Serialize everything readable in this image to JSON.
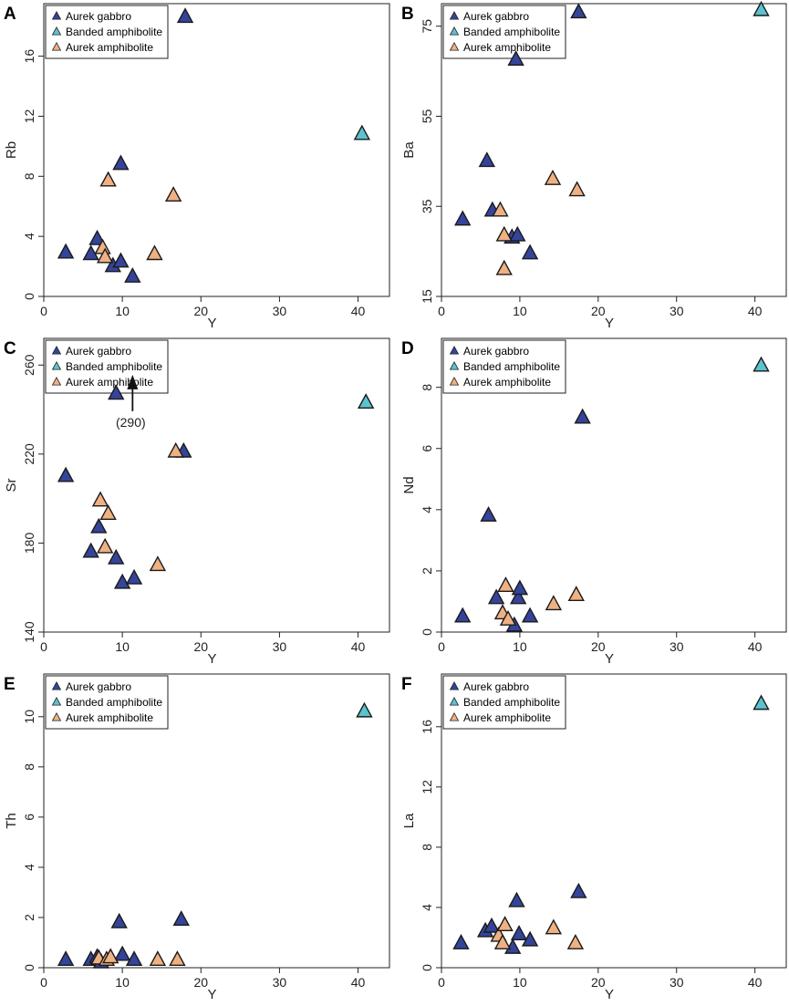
{
  "figure": {
    "colors": {
      "Aurek gabbro": "#34449a",
      "Banded amphibolite": "#5bc3cd",
      "Aurek amphibolite": "#f0b182"
    }
  },
  "chart_data": [
    {
      "type": "scatter",
      "panel": "A",
      "xlabel": "Y",
      "ylabel": "Rb",
      "xlim": [
        0,
        44
      ],
      "ylim": [
        0,
        19.5
      ],
      "xticks": [
        0,
        10,
        20,
        30,
        40
      ],
      "yticks": [
        0,
        4,
        8,
        12,
        16
      ],
      "legend": [
        "Aurek gabbro",
        "Banded amphibolite",
        "Aurek amphibolite"
      ],
      "series": [
        {
          "name": "Aurek gabbro",
          "points": [
            [
              2.8,
              2.9
            ],
            [
              6,
              2.8
            ],
            [
              6.8,
              3.8
            ],
            [
              8.8,
              2
            ],
            [
              9.8,
              2.3
            ],
            [
              9.8,
              8.8
            ],
            [
              11.3,
              1.3
            ],
            [
              18,
              18.6
            ]
          ]
        },
        {
          "name": "Banded amphibolite",
          "points": [
            [
              40.5,
              10.8
            ]
          ]
        },
        {
          "name": "Aurek amphibolite",
          "points": [
            [
              7.5,
              3.2
            ],
            [
              7.8,
              2.6
            ],
            [
              8.2,
              7.7
            ],
            [
              14.1,
              2.8
            ],
            [
              16.5,
              6.7
            ]
          ]
        }
      ]
    },
    {
      "type": "scatter",
      "panel": "B",
      "xlabel": "Y",
      "ylabel": "Ba",
      "xlim": [
        0,
        44
      ],
      "ylim": [
        15,
        80
      ],
      "xticks": [
        0,
        10,
        20,
        30,
        40
      ],
      "yticks": [
        15,
        35,
        55,
        75
      ],
      "legend": [
        "Aurek gabbro",
        "Banded amphibolite",
        "Aurek amphibolite"
      ],
      "series": [
        {
          "name": "Aurek gabbro",
          "points": [
            [
              2.7,
              32
            ],
            [
              5.8,
              45
            ],
            [
              6.5,
              34
            ],
            [
              9,
              28
            ],
            [
              9.7,
              28.5
            ],
            [
              9.5,
              67.5
            ],
            [
              11.3,
              24.5
            ],
            [
              17.5,
              78
            ]
          ]
        },
        {
          "name": "Banded amphibolite",
          "points": [
            [
              40.8,
              78.5
            ]
          ]
        },
        {
          "name": "Aurek amphibolite",
          "points": [
            [
              7.5,
              34
            ],
            [
              8,
              28.5
            ],
            [
              8,
              21
            ],
            [
              14.2,
              41
            ],
            [
              17.3,
              38.5
            ]
          ]
        }
      ]
    },
    {
      "type": "scatter",
      "panel": "C",
      "xlabel": "Y",
      "ylabel": "Sr",
      "xlim": [
        0,
        44
      ],
      "ylim": [
        140,
        272
      ],
      "xticks": [
        0,
        10,
        20,
        30,
        40
      ],
      "yticks": [
        140,
        180,
        220,
        260
      ],
      "legend": [
        "Aurek gabbro",
        "Banded amphibolite",
        "Aurek amphibolite"
      ],
      "annotation": {
        "text": "(290)",
        "x": 11.3,
        "y": 236
      },
      "series": [
        {
          "name": "Aurek gabbro",
          "points": [
            [
              2.8,
              210
            ],
            [
              6,
              176
            ],
            [
              7,
              187
            ],
            [
              9.2,
              247
            ],
            [
              9.2,
              173
            ],
            [
              10,
              162
            ],
            [
              11.5,
              164
            ],
            [
              17.8,
              221
            ]
          ]
        },
        {
          "name": "Banded amphibolite",
          "points": [
            [
              41,
              243
            ]
          ]
        },
        {
          "name": "Aurek amphibolite",
          "points": [
            [
              7.2,
              199
            ],
            [
              7.8,
              178
            ],
            [
              8.2,
              193
            ],
            [
              14.5,
              170
            ],
            [
              16.8,
              221
            ]
          ]
        }
      ]
    },
    {
      "type": "scatter",
      "panel": "D",
      "xlabel": "Y",
      "ylabel": "Nd",
      "xlim": [
        0,
        44
      ],
      "ylim": [
        0,
        9.6
      ],
      "xticks": [
        0,
        10,
        20,
        30,
        40
      ],
      "yticks": [
        0,
        2,
        4,
        6,
        8
      ],
      "legend": [
        "Aurek gabbro",
        "Banded amphibolite",
        "Aurek amphibolite"
      ],
      "series": [
        {
          "name": "Aurek gabbro",
          "points": [
            [
              2.7,
              0.5
            ],
            [
              6,
              3.8
            ],
            [
              7,
              1.1
            ],
            [
              9.3,
              0.2
            ],
            [
              9.8,
              1.1
            ],
            [
              10,
              1.4
            ],
            [
              11.3,
              0.5
            ],
            [
              18,
              7.0
            ]
          ]
        },
        {
          "name": "Banded amphibolite",
          "points": [
            [
              40.8,
              8.7
            ]
          ]
        },
        {
          "name": "Aurek amphibolite",
          "points": [
            [
              7.8,
              0.6
            ],
            [
              8.2,
              1.5
            ],
            [
              8.5,
              0.4
            ],
            [
              14.3,
              0.9
            ],
            [
              17.2,
              1.2
            ]
          ]
        }
      ]
    },
    {
      "type": "scatter",
      "panel": "E",
      "xlabel": "Y",
      "ylabel": "Th",
      "xlim": [
        0,
        44
      ],
      "ylim": [
        0,
        11.7
      ],
      "xticks": [
        0,
        10,
        20,
        30,
        40
      ],
      "yticks": [
        0,
        2,
        4,
        6,
        8,
        10
      ],
      "legend": [
        "Aurek gabbro",
        "Banded amphibolite",
        "Aurek amphibolite"
      ],
      "series": [
        {
          "name": "Aurek gabbro",
          "points": [
            [
              2.8,
              0.3
            ],
            [
              6,
              0.3
            ],
            [
              6.8,
              0.4
            ],
            [
              7.3,
              0.2
            ],
            [
              9.6,
              1.8
            ],
            [
              10,
              0.5
            ],
            [
              11.5,
              0.3
            ],
            [
              17.5,
              1.9
            ]
          ]
        },
        {
          "name": "Banded amphibolite",
          "points": [
            [
              40.8,
              10.2
            ]
          ]
        },
        {
          "name": "Aurek amphibolite",
          "points": [
            [
              7,
              0.35
            ],
            [
              8,
              0.3
            ],
            [
              8.5,
              0.4
            ],
            [
              14.5,
              0.3
            ],
            [
              17,
              0.3
            ]
          ]
        }
      ]
    },
    {
      "type": "scatter",
      "panel": "F",
      "xlabel": "Y",
      "ylabel": "La",
      "xlim": [
        0,
        44
      ],
      "ylim": [
        0,
        19.5
      ],
      "xticks": [
        0,
        10,
        20,
        30,
        40
      ],
      "yticks": [
        0,
        4,
        8,
        12,
        16
      ],
      "legend": [
        "Aurek gabbro",
        "Banded amphibolite",
        "Aurek amphibolite"
      ],
      "series": [
        {
          "name": "Aurek gabbro",
          "points": [
            [
              2.5,
              1.6
            ],
            [
              5.6,
              2.4
            ],
            [
              6.4,
              2.7
            ],
            [
              9.1,
              1.3
            ],
            [
              9.6,
              4.4
            ],
            [
              9.9,
              2.2
            ],
            [
              11.3,
              1.8
            ],
            [
              17.5,
              5.0
            ]
          ]
        },
        {
          "name": "Banded amphibolite",
          "points": [
            [
              40.8,
              17.5
            ]
          ]
        },
        {
          "name": "Aurek amphibolite",
          "points": [
            [
              7.3,
              2.1
            ],
            [
              7.8,
              1.6
            ],
            [
              8.1,
              2.8
            ],
            [
              14.3,
              2.6
            ],
            [
              17.1,
              1.6
            ]
          ]
        }
      ]
    }
  ]
}
